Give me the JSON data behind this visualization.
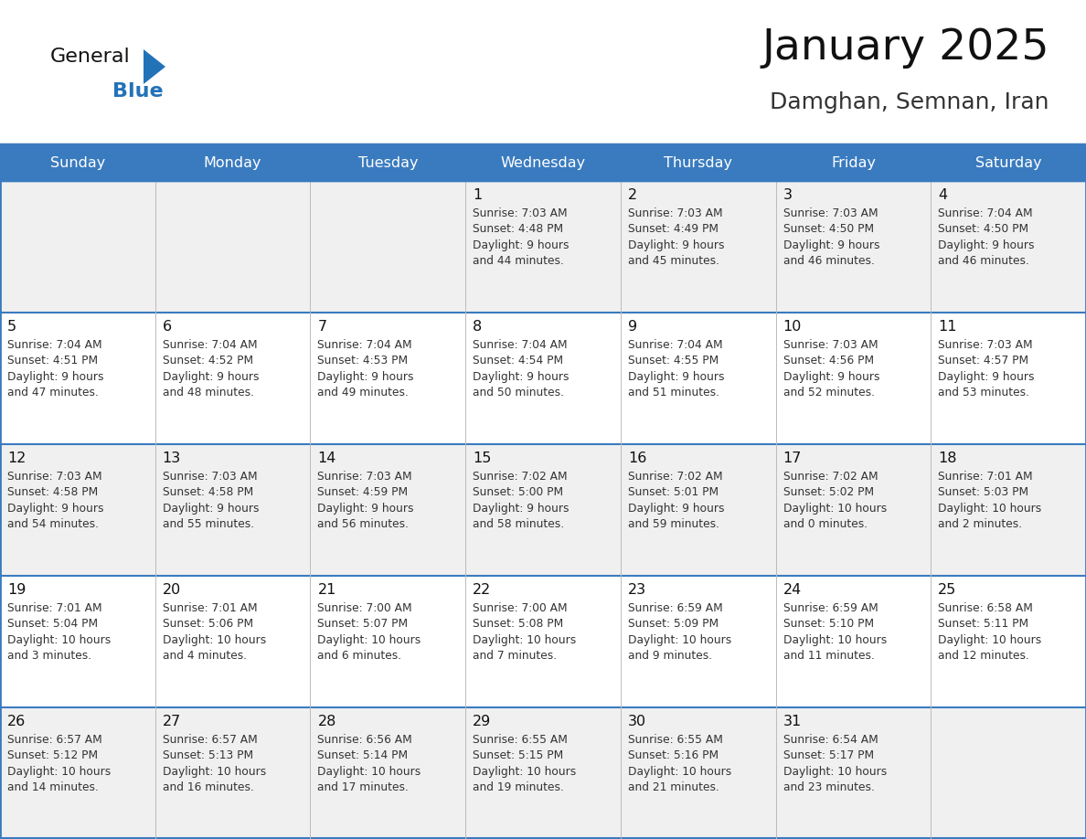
{
  "title": "January 2025",
  "subtitle": "Damghan, Semnan, Iran",
  "days_of_week": [
    "Sunday",
    "Monday",
    "Tuesday",
    "Wednesday",
    "Thursday",
    "Friday",
    "Saturday"
  ],
  "header_bg": "#3a7bbf",
  "header_text": "#ffffff",
  "row_bg_odd": "#f0f0f0",
  "row_bg_even": "#ffffff",
  "cell_text_color": "#333333",
  "day_num_color": "#111111",
  "divider_color": "#3a7bbf",
  "grid_line_color": "#bbbbbb",
  "logo_general_color": "#111111",
  "logo_blue_color": "#2272b8",
  "title_color": "#111111",
  "subtitle_color": "#333333",
  "calendar_data": [
    {
      "day": 1,
      "col": 3,
      "row": 0,
      "sunrise": "7:03 AM",
      "sunset": "4:48 PM",
      "daylight": "9 hours and 44 minutes."
    },
    {
      "day": 2,
      "col": 4,
      "row": 0,
      "sunrise": "7:03 AM",
      "sunset": "4:49 PM",
      "daylight": "9 hours and 45 minutes."
    },
    {
      "day": 3,
      "col": 5,
      "row": 0,
      "sunrise": "7:03 AM",
      "sunset": "4:50 PM",
      "daylight": "9 hours and 46 minutes."
    },
    {
      "day": 4,
      "col": 6,
      "row": 0,
      "sunrise": "7:04 AM",
      "sunset": "4:50 PM",
      "daylight": "9 hours and 46 minutes."
    },
    {
      "day": 5,
      "col": 0,
      "row": 1,
      "sunrise": "7:04 AM",
      "sunset": "4:51 PM",
      "daylight": "9 hours and 47 minutes."
    },
    {
      "day": 6,
      "col": 1,
      "row": 1,
      "sunrise": "7:04 AM",
      "sunset": "4:52 PM",
      "daylight": "9 hours and 48 minutes."
    },
    {
      "day": 7,
      "col": 2,
      "row": 1,
      "sunrise": "7:04 AM",
      "sunset": "4:53 PM",
      "daylight": "9 hours and 49 minutes."
    },
    {
      "day": 8,
      "col": 3,
      "row": 1,
      "sunrise": "7:04 AM",
      "sunset": "4:54 PM",
      "daylight": "9 hours and 50 minutes."
    },
    {
      "day": 9,
      "col": 4,
      "row": 1,
      "sunrise": "7:04 AM",
      "sunset": "4:55 PM",
      "daylight": "9 hours and 51 minutes."
    },
    {
      "day": 10,
      "col": 5,
      "row": 1,
      "sunrise": "7:03 AM",
      "sunset": "4:56 PM",
      "daylight": "9 hours and 52 minutes."
    },
    {
      "day": 11,
      "col": 6,
      "row": 1,
      "sunrise": "7:03 AM",
      "sunset": "4:57 PM",
      "daylight": "9 hours and 53 minutes."
    },
    {
      "day": 12,
      "col": 0,
      "row": 2,
      "sunrise": "7:03 AM",
      "sunset": "4:58 PM",
      "daylight": "9 hours and 54 minutes."
    },
    {
      "day": 13,
      "col": 1,
      "row": 2,
      "sunrise": "7:03 AM",
      "sunset": "4:58 PM",
      "daylight": "9 hours and 55 minutes."
    },
    {
      "day": 14,
      "col": 2,
      "row": 2,
      "sunrise": "7:03 AM",
      "sunset": "4:59 PM",
      "daylight": "9 hours and 56 minutes."
    },
    {
      "day": 15,
      "col": 3,
      "row": 2,
      "sunrise": "7:02 AM",
      "sunset": "5:00 PM",
      "daylight": "9 hours and 58 minutes."
    },
    {
      "day": 16,
      "col": 4,
      "row": 2,
      "sunrise": "7:02 AM",
      "sunset": "5:01 PM",
      "daylight": "9 hours and 59 minutes."
    },
    {
      "day": 17,
      "col": 5,
      "row": 2,
      "sunrise": "7:02 AM",
      "sunset": "5:02 PM",
      "daylight": "10 hours and 0 minutes."
    },
    {
      "day": 18,
      "col": 6,
      "row": 2,
      "sunrise": "7:01 AM",
      "sunset": "5:03 PM",
      "daylight": "10 hours and 2 minutes."
    },
    {
      "day": 19,
      "col": 0,
      "row": 3,
      "sunrise": "7:01 AM",
      "sunset": "5:04 PM",
      "daylight": "10 hours and 3 minutes."
    },
    {
      "day": 20,
      "col": 1,
      "row": 3,
      "sunrise": "7:01 AM",
      "sunset": "5:06 PM",
      "daylight": "10 hours and 4 minutes."
    },
    {
      "day": 21,
      "col": 2,
      "row": 3,
      "sunrise": "7:00 AM",
      "sunset": "5:07 PM",
      "daylight": "10 hours and 6 minutes."
    },
    {
      "day": 22,
      "col": 3,
      "row": 3,
      "sunrise": "7:00 AM",
      "sunset": "5:08 PM",
      "daylight": "10 hours and 7 minutes."
    },
    {
      "day": 23,
      "col": 4,
      "row": 3,
      "sunrise": "6:59 AM",
      "sunset": "5:09 PM",
      "daylight": "10 hours and 9 minutes."
    },
    {
      "day": 24,
      "col": 5,
      "row": 3,
      "sunrise": "6:59 AM",
      "sunset": "5:10 PM",
      "daylight": "10 hours and 11 minutes."
    },
    {
      "day": 25,
      "col": 6,
      "row": 3,
      "sunrise": "6:58 AM",
      "sunset": "5:11 PM",
      "daylight": "10 hours and 12 minutes."
    },
    {
      "day": 26,
      "col": 0,
      "row": 4,
      "sunrise": "6:57 AM",
      "sunset": "5:12 PM",
      "daylight": "10 hours and 14 minutes."
    },
    {
      "day": 27,
      "col": 1,
      "row": 4,
      "sunrise": "6:57 AM",
      "sunset": "5:13 PM",
      "daylight": "10 hours and 16 minutes."
    },
    {
      "day": 28,
      "col": 2,
      "row": 4,
      "sunrise": "6:56 AM",
      "sunset": "5:14 PM",
      "daylight": "10 hours and 17 minutes."
    },
    {
      "day": 29,
      "col": 3,
      "row": 4,
      "sunrise": "6:55 AM",
      "sunset": "5:15 PM",
      "daylight": "10 hours and 19 minutes."
    },
    {
      "day": 30,
      "col": 4,
      "row": 4,
      "sunrise": "6:55 AM",
      "sunset": "5:16 PM",
      "daylight": "10 hours and 21 minutes."
    },
    {
      "day": 31,
      "col": 5,
      "row": 4,
      "sunrise": "6:54 AM",
      "sunset": "5:17 PM",
      "daylight": "10 hours and 23 minutes."
    }
  ]
}
